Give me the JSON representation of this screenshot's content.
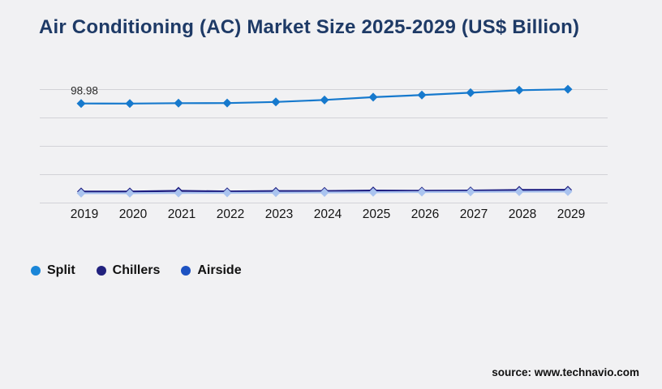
{
  "title": "Air Conditioning (AC) Market Size 2025-2029 (US$ Billion)",
  "source_text": "source: www.technavio.com",
  "colors": {
    "background": "#f1f1f3",
    "title": "#1e3a66",
    "gridline": "#d2d2d7",
    "axis_label": "#141414",
    "annotation": "#2b2b2b"
  },
  "legend": [
    {
      "label": "Split",
      "color": "#1a86d8"
    },
    {
      "label": "Chillers",
      "color": "#21217e"
    },
    {
      "label": "Airside",
      "color": "#1d52c2"
    }
  ],
  "chart_data": {
    "type": "line",
    "title": "Air Conditioning (AC) Market Size 2025-2029 (US$ Billion)",
    "x": [
      2019,
      2020,
      2021,
      2022,
      2023,
      2024,
      2025,
      2026,
      2027,
      2028,
      2029
    ],
    "ylim": [
      0,
      113
    ],
    "grid": "horizontal",
    "legend_position": "bottom-left",
    "series": [
      {
        "name": "Split",
        "color": "#1679cd",
        "marker": "diamond",
        "values": [
          98.98,
          98.9,
          99.3,
          99.4,
          100.5,
          102.5,
          105.3,
          107.4,
          109.7,
          112.2,
          113.1
        ]
      },
      {
        "name": "Chillers",
        "color": "#1b1b80",
        "marker": "diamond",
        "values": [
          11.4,
          11.4,
          12.1,
          11.5,
          11.9,
          11.9,
          12.4,
          12.2,
          12.4,
          13.0,
          13.1
        ]
      },
      {
        "name": "Airside",
        "color": "#a9c3ef",
        "marker": "diamond",
        "values": [
          9.8,
          9.8,
          10.0,
          10.1,
          10.3,
          10.5,
          10.7,
          10.9,
          11.1,
          11.3,
          11.4
        ]
      }
    ],
    "annotations": [
      {
        "series": "Split",
        "x": 2019,
        "text": "98.98"
      }
    ]
  }
}
